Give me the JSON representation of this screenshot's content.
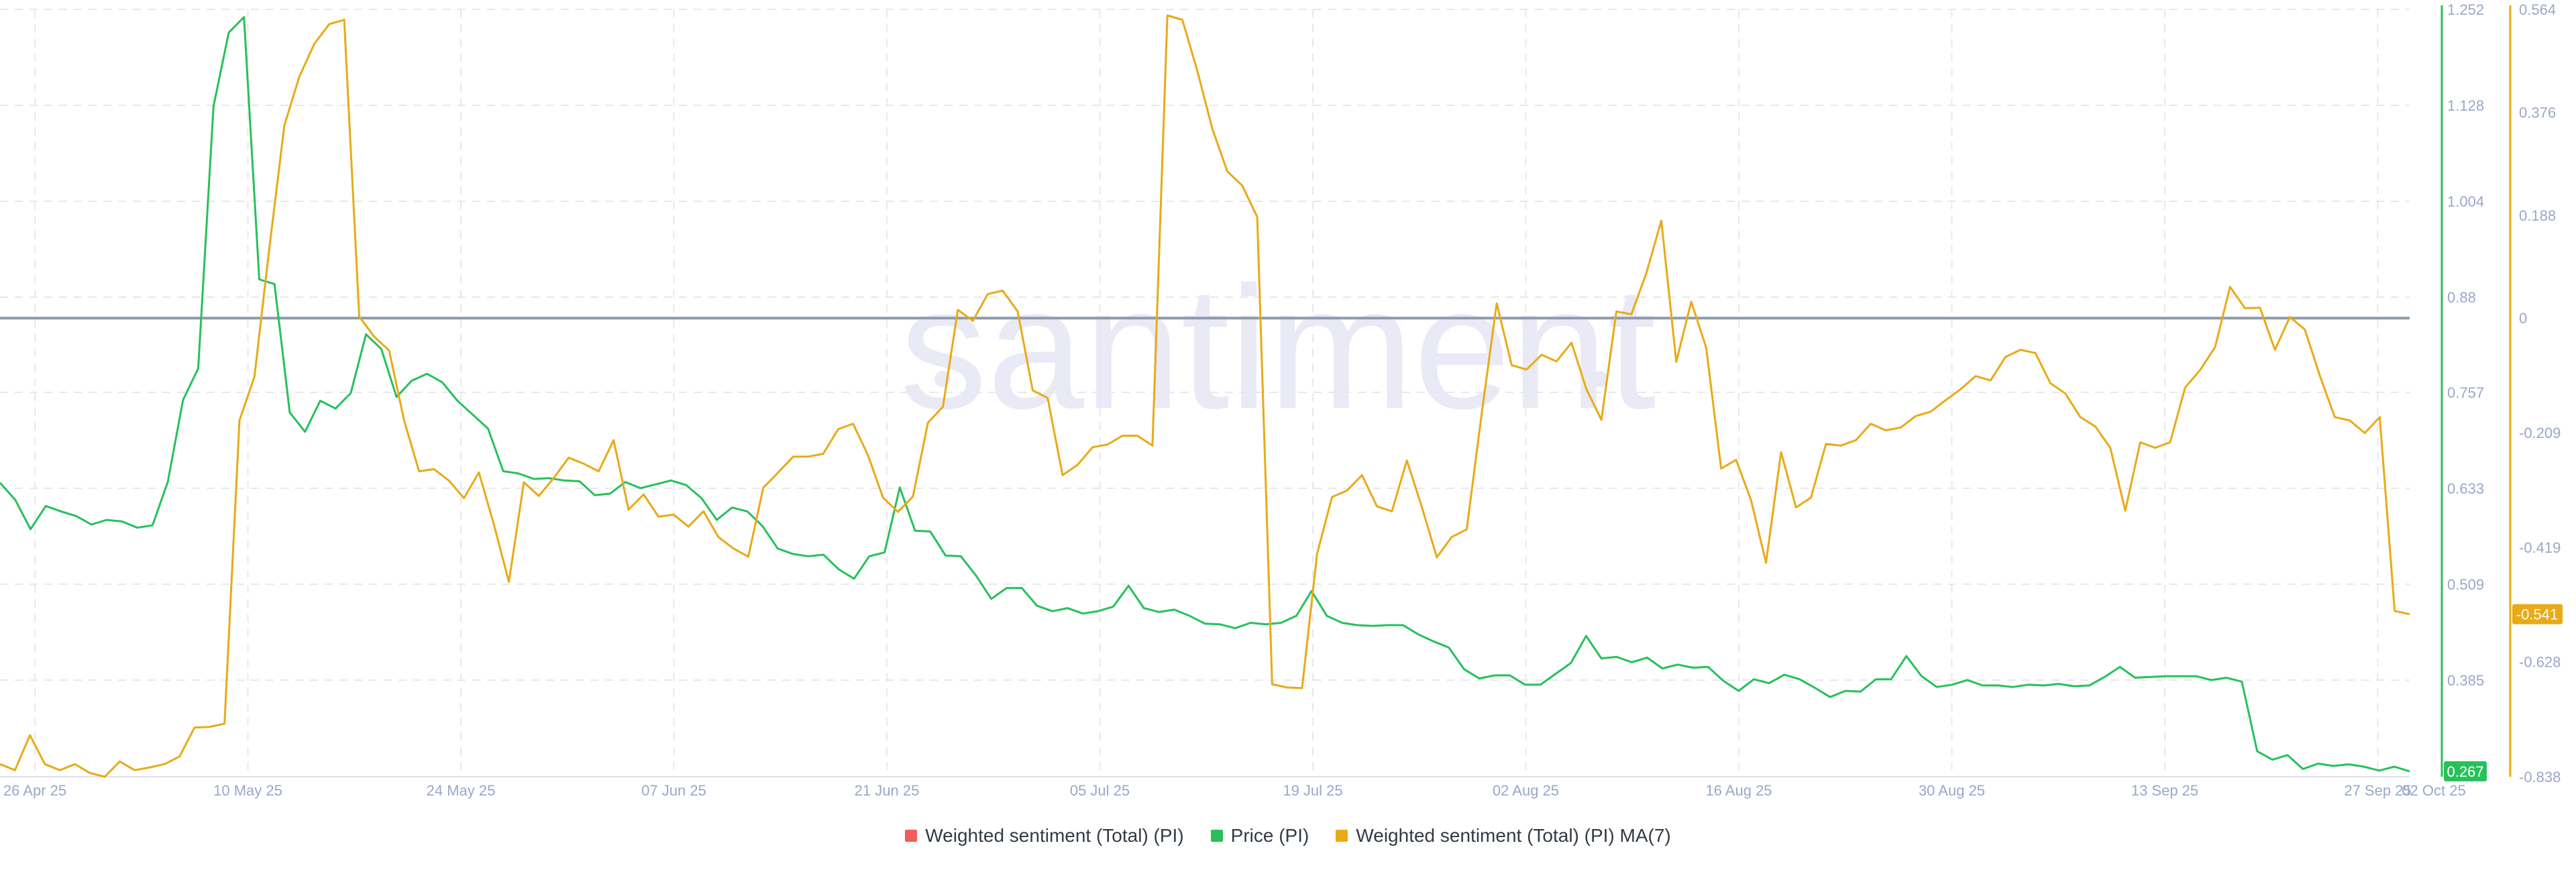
{
  "watermark": "santiment",
  "colors": {
    "sentiment": "#f25c5c",
    "price": "#26c15a",
    "ma7": "#e9aa16",
    "zero_line": "#8e9aaa",
    "grid": "#e6e8ee",
    "tick": "#9aa7c8"
  },
  "chart_data": {
    "type": "line",
    "x_ticks": [
      "26 Apr 25",
      "10 May 25",
      "24 May 25",
      "07 Jun 25",
      "21 Jun 25",
      "05 Jul 25",
      "19 Jul 25",
      "02 Aug 25",
      "16 Aug 25",
      "30 Aug 25",
      "13 Sep 25",
      "27 Sep 25",
      "02 Oct 25"
    ],
    "x_range": [
      "2025-04-25",
      "2025-10-02"
    ],
    "y_left": {
      "ticks": [
        "1.252",
        "1.128",
        "1.004",
        "0.88",
        "0.757",
        "0.633",
        "0.509",
        "0.385"
      ],
      "range": [
        0.26,
        1.252
      ],
      "current": "0.267"
    },
    "y_right": {
      "ticks": [
        "0.564",
        "0.376",
        "0.188",
        "0",
        "-0.209",
        "-0.419",
        "-0.628",
        "-0.838"
      ],
      "range": [
        -0.838,
        0.564
      ],
      "current": "-0.541"
    },
    "series": [
      {
        "name": "Weighted sentiment (Total) (PI)",
        "axis": "right",
        "values": []
      },
      {
        "name": "Price (PI)",
        "axis": "left",
        "values": [
          0.64,
          0.618,
          0.58,
          0.61,
          0.603,
          0.597,
          0.586,
          0.592,
          0.59,
          0.582,
          0.585,
          0.641,
          0.747,
          0.788,
          1.127,
          1.222,
          1.242,
          0.903,
          0.897,
          0.731,
          0.706,
          0.746,
          0.736,
          0.756,
          0.832,
          0.813,
          0.751,
          0.772,
          0.781,
          0.77,
          0.746,
          0.728,
          0.71,
          0.655,
          0.652,
          0.645,
          0.646,
          0.643,
          0.642,
          0.624,
          0.626,
          0.641,
          0.633,
          0.638,
          0.643,
          0.637,
          0.62,
          0.592,
          0.608,
          0.603,
          0.584,
          0.555,
          0.548,
          0.545,
          0.547,
          0.528,
          0.516,
          0.545,
          0.55,
          0.634,
          0.578,
          0.577,
          0.546,
          0.545,
          0.52,
          0.49,
          0.504,
          0.504,
          0.481,
          0.474,
          0.478,
          0.471,
          0.474,
          0.48,
          0.507,
          0.478,
          0.473,
          0.476,
          0.468,
          0.458,
          0.457,
          0.452,
          0.459,
          0.457,
          0.459,
          0.468,
          0.5,
          0.468,
          0.459,
          0.456,
          0.455,
          0.456,
          0.456,
          0.444,
          0.435,
          0.427,
          0.399,
          0.387,
          0.391,
          0.391,
          0.379,
          0.379,
          0.393,
          0.407,
          0.442,
          0.413,
          0.415,
          0.408,
          0.414,
          0.4,
          0.405,
          0.401,
          0.402,
          0.384,
          0.371,
          0.386,
          0.381,
          0.392,
          0.386,
          0.375,
          0.363,
          0.371,
          0.37,
          0.386,
          0.386,
          0.416,
          0.39,
          0.376,
          0.379,
          0.385,
          0.378,
          0.378,
          0.376,
          0.379,
          0.378,
          0.38,
          0.377,
          0.378,
          0.389,
          0.402,
          0.388,
          0.389,
          0.39,
          0.39,
          0.39,
          0.385,
          0.388,
          0.383,
          0.293,
          0.282,
          0.288,
          0.27,
          0.277,
          0.274,
          0.276,
          0.273,
          0.268,
          0.273,
          0.267
        ]
      },
      {
        "name": "Weighted sentiment (Total) (PI) MA(7)",
        "axis": "right",
        "values": [
          -0.815,
          -0.826,
          -0.762,
          -0.815,
          -0.826,
          -0.815,
          -0.831,
          -0.838,
          -0.81,
          -0.826,
          -0.821,
          -0.815,
          -0.801,
          -0.748,
          -0.747,
          -0.741,
          -0.187,
          -0.107,
          0.129,
          0.352,
          0.441,
          0.501,
          0.537,
          0.545,
          0.003,
          -0.034,
          -0.059,
          -0.187,
          -0.28,
          -0.276,
          -0.297,
          -0.329,
          -0.282,
          -0.377,
          -0.482,
          -0.3,
          -0.325,
          -0.292,
          -0.255,
          -0.266,
          -0.28,
          -0.223,
          -0.35,
          -0.322,
          -0.363,
          -0.359,
          -0.381,
          -0.353,
          -0.4,
          -0.421,
          -0.436,
          -0.31,
          -0.282,
          -0.253,
          -0.253,
          -0.248,
          -0.203,
          -0.193,
          -0.251,
          -0.328,
          -0.354,
          -0.326,
          -0.191,
          -0.162,
          0.015,
          -0.005,
          0.044,
          0.05,
          0.012,
          -0.132,
          -0.146,
          -0.287,
          -0.268,
          -0.236,
          -0.231,
          -0.215,
          -0.215,
          -0.233,
          0.553,
          0.545,
          0.452,
          0.346,
          0.268,
          0.242,
          0.185,
          -0.669,
          -0.675,
          -0.676,
          -0.431,
          -0.327,
          -0.315,
          -0.287,
          -0.344,
          -0.353,
          -0.26,
          -0.345,
          -0.437,
          -0.4,
          -0.386,
          -0.175,
          0.027,
          -0.086,
          -0.094,
          -0.067,
          -0.079,
          -0.045,
          -0.13,
          -0.186,
          0.012,
          0.007,
          0.082,
          0.178,
          -0.08,
          0.03,
          -0.054,
          -0.275,
          -0.259,
          -0.333,
          -0.447,
          -0.245,
          -0.346,
          -0.328,
          -0.23,
          -0.233,
          -0.223,
          -0.193,
          -0.205,
          -0.2,
          -0.179,
          -0.171,
          -0.15,
          -0.13,
          -0.106,
          -0.114,
          -0.071,
          -0.058,
          -0.064,
          -0.119,
          -0.138,
          -0.181,
          -0.198,
          -0.237,
          -0.352,
          -0.227,
          -0.237,
          -0.227,
          -0.127,
          -0.095,
          -0.053,
          0.057,
          0.018,
          0.019,
          -0.058,
          0.002,
          -0.021,
          -0.105,
          -0.181,
          -0.187,
          -0.21,
          -0.181,
          -0.535,
          -0.541
        ]
      }
    ],
    "zero_line": 0,
    "grid": true,
    "legend_position": "bottom"
  }
}
